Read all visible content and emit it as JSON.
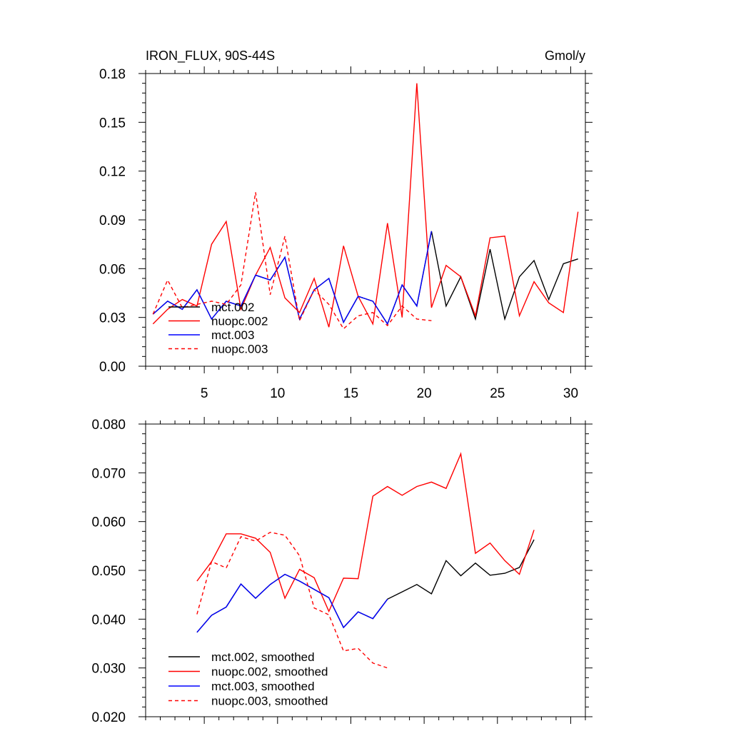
{
  "chart_data": [
    {
      "type": "line",
      "title": "IRON_FLUX, 90S-44S",
      "units": "Gmol/y",
      "xlabel": "",
      "ylabel": "",
      "xlim": [
        1,
        31
      ],
      "ylim": [
        0,
        0.18
      ],
      "xticks": [
        5,
        10,
        15,
        20,
        25,
        30
      ],
      "xtick_labels": [
        "5",
        "10",
        "15",
        "20",
        "25",
        "30"
      ],
      "yticks": [
        0,
        0.03,
        0.06,
        0.09,
        0.12,
        0.15,
        0.18
      ],
      "ytick_labels": [
        "0.00",
        "0.03",
        "0.06",
        "0.09",
        "0.12",
        "0.15",
        "0.18"
      ],
      "legend_position": "bottom-left",
      "series": [
        {
          "name": "mct.002",
          "color": "#000000",
          "dash": "solid",
          "x": [
            1.5,
            2.5,
            3.5,
            4.5,
            5.5,
            6.5,
            7.5,
            8.5,
            9.5,
            10.5,
            11.5,
            12.5,
            13.5,
            14.5,
            15.5,
            16.5,
            17.5,
            18.5,
            19.5,
            20.5,
            21.5,
            22.5,
            23.5,
            24.5,
            25.5,
            26.5,
            27.5,
            28.5,
            29.5,
            30.5
          ],
          "values": [
            0.032,
            0.04,
            0.035,
            0.047,
            0.029,
            0.04,
            0.037,
            0.056,
            0.053,
            0.067,
            0.029,
            0.047,
            0.054,
            0.027,
            0.043,
            0.04,
            0.026,
            0.05,
            0.037,
            0.083,
            0.037,
            0.055,
            0.029,
            0.072,
            0.029,
            0.055,
            0.065,
            0.041,
            0.063,
            0.066
          ]
        },
        {
          "name": "nuopc.002",
          "color": "#ff0000",
          "dash": "solid",
          "x": [
            1.5,
            2.5,
            3.5,
            4.5,
            5.5,
            6.5,
            7.5,
            8.5,
            9.5,
            10.5,
            11.5,
            12.5,
            13.5,
            14.5,
            15.5,
            16.5,
            17.5,
            18.5,
            19.5,
            20.5,
            21.5,
            22.5,
            23.5,
            24.5,
            25.5,
            26.5,
            27.5,
            28.5,
            29.5,
            30.5
          ],
          "values": [
            0.026,
            0.035,
            0.041,
            0.037,
            0.075,
            0.089,
            0.035,
            0.056,
            0.073,
            0.042,
            0.033,
            0.054,
            0.024,
            0.074,
            0.043,
            0.026,
            0.088,
            0.03,
            0.174,
            0.036,
            0.062,
            0.055,
            0.031,
            0.079,
            0.08,
            0.031,
            0.052,
            0.039,
            0.033,
            0.095
          ]
        },
        {
          "name": "mct.003",
          "color": "#0000ff",
          "dash": "solid",
          "x": [
            1.5,
            2.5,
            3.5,
            4.5,
            5.5,
            6.5,
            7.5,
            8.5,
            9.5,
            10.5,
            11.5,
            12.5,
            13.5,
            14.5,
            15.5,
            16.5,
            17.5,
            18.5,
            19.5,
            20.5
          ],
          "values": [
            0.032,
            0.04,
            0.035,
            0.047,
            0.029,
            0.04,
            0.037,
            0.056,
            0.053,
            0.067,
            0.029,
            0.047,
            0.054,
            0.027,
            0.043,
            0.04,
            0.026,
            0.05,
            0.037,
            0.083
          ]
        },
        {
          "name": "nuopc.003",
          "color": "#ff0000",
          "dash": "dashed",
          "x": [
            1.5,
            2.5,
            3.5,
            4.5,
            5.5,
            6.5,
            7.5,
            8.5,
            9.5,
            10.5,
            11.5,
            12.5,
            13.5,
            14.5,
            15.5,
            16.5,
            17.5,
            18.5,
            19.5,
            20.5
          ],
          "values": [
            0.032,
            0.053,
            0.036,
            0.038,
            0.04,
            0.038,
            0.05,
            0.107,
            0.044,
            0.08,
            0.028,
            0.047,
            0.038,
            0.023,
            0.031,
            0.033,
            0.025,
            0.037,
            0.029,
            0.028
          ]
        }
      ]
    },
    {
      "type": "line",
      "title": "",
      "xlabel": "",
      "ylabel": "",
      "xlim": [
        1,
        31
      ],
      "ylim": [
        0.02,
        0.08
      ],
      "xticks": [
        5,
        10,
        15,
        20,
        25,
        30
      ],
      "xtick_labels": [],
      "yticks": [
        0.02,
        0.03,
        0.04,
        0.05,
        0.06,
        0.07,
        0.08
      ],
      "ytick_labels": [
        "0.020",
        "0.030",
        "0.040",
        "0.050",
        "0.060",
        "0.070",
        "0.080"
      ],
      "legend_position": "bottom-left",
      "series": [
        {
          "name": "mct.002, smoothed",
          "color": "#000000",
          "dash": "solid",
          "x": [
            4.5,
            5.5,
            6.5,
            7.5,
            8.5,
            9.5,
            10.5,
            11.5,
            12.5,
            13.5,
            14.5,
            15.5,
            16.5,
            17.5,
            18.5,
            19.5,
            20.5,
            21.5,
            22.5,
            23.5,
            24.5,
            25.5,
            26.5,
            27.5
          ],
          "values": [
            0.0373,
            0.0408,
            0.0425,
            0.0472,
            0.0443,
            0.0471,
            0.0492,
            0.0478,
            0.0461,
            0.0444,
            0.0383,
            0.0415,
            0.0401,
            0.0441,
            0.0456,
            0.0471,
            0.0452,
            0.052,
            0.0489,
            0.0515,
            0.049,
            0.0494,
            0.0506,
            0.0563
          ]
        },
        {
          "name": "nuopc.002, smoothed",
          "color": "#ff0000",
          "dash": "solid",
          "x": [
            4.5,
            5.5,
            6.5,
            7.5,
            8.5,
            9.5,
            10.5,
            11.5,
            12.5,
            13.5,
            14.5,
            15.5,
            16.5,
            17.5,
            18.5,
            19.5,
            20.5,
            21.5,
            22.5,
            23.5,
            24.5,
            25.5,
            26.5,
            27.5
          ],
          "values": [
            0.0478,
            0.0518,
            0.0575,
            0.0575,
            0.0566,
            0.0537,
            0.0443,
            0.0502,
            0.0485,
            0.0416,
            0.0484,
            0.0483,
            0.0652,
            0.0672,
            0.0654,
            0.0672,
            0.0681,
            0.0668,
            0.0739,
            0.0535,
            0.0556,
            0.052,
            0.0492,
            0.0583
          ]
        },
        {
          "name": "mct.003, smoothed",
          "color": "#0000ff",
          "dash": "solid",
          "x": [
            4.5,
            5.5,
            6.5,
            7.5,
            8.5,
            9.5,
            10.5,
            11.5,
            12.5,
            13.5,
            14.5,
            15.5,
            16.5,
            17.5
          ],
          "values": [
            0.0373,
            0.0408,
            0.0425,
            0.0472,
            0.0443,
            0.0471,
            0.0492,
            0.0478,
            0.0461,
            0.0444,
            0.0383,
            0.0415,
            0.0401,
            0.0441
          ]
        },
        {
          "name": "nuopc.003, smoothed",
          "color": "#ff0000",
          "dash": "dashed",
          "x": [
            4.5,
            5.5,
            6.5,
            7.5,
            8.5,
            9.5,
            10.5,
            11.5,
            12.5,
            13.5,
            14.5,
            15.5,
            16.5,
            17.5
          ],
          "values": [
            0.041,
            0.0518,
            0.0505,
            0.0569,
            0.056,
            0.0578,
            0.0572,
            0.053,
            0.0423,
            0.0409,
            0.0335,
            0.034,
            0.031,
            0.03
          ]
        }
      ]
    }
  ]
}
